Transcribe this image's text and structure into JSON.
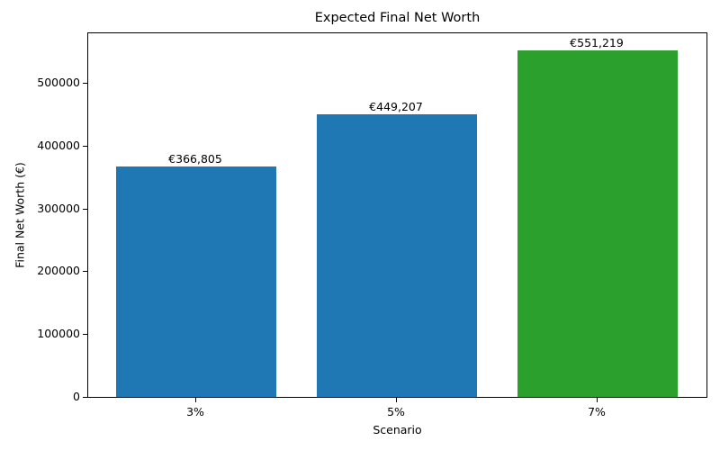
{
  "chart_data": {
    "type": "bar",
    "title": "Expected Final Net Worth",
    "xlabel": "Scenario",
    "ylabel": "Final Net Worth (€)",
    "categories": [
      "3%",
      "5%",
      "7%"
    ],
    "values": [
      366805,
      449207,
      551219
    ],
    "data_labels": [
      "€366,805",
      "€449,207",
      "€551,219"
    ],
    "colors": [
      "#1f77b4",
      "#1f77b4",
      "#2ca02c"
    ],
    "ylim": [
      0,
      578780
    ],
    "yticks": [
      0,
      100000,
      200000,
      300000,
      400000,
      500000
    ],
    "ytick_labels": [
      "0",
      "100000",
      "200000",
      "300000",
      "400000",
      "500000"
    ],
    "grid": false,
    "legend": null
  }
}
